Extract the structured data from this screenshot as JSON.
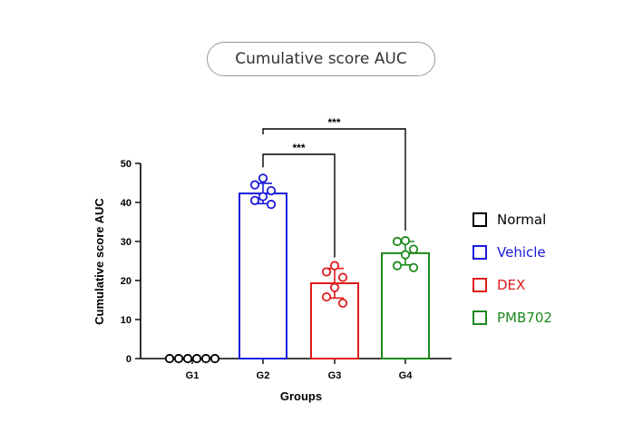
{
  "page_title": "Cumulative score AUC",
  "chart_data": {
    "type": "bar",
    "title": "Cumulative score AUC",
    "xlabel": "Groups",
    "ylabel": "Cumulative score AUC",
    "ylim": [
      0,
      50
    ],
    "yticks": [
      0,
      10,
      20,
      30,
      40,
      50
    ],
    "categories": [
      "G1",
      "G2",
      "G3",
      "G4"
    ],
    "values": [
      0,
      42.3,
      19.3,
      27.0
    ],
    "errors": [
      0,
      2.6,
      3.8,
      3.0
    ],
    "colors": [
      "#000000",
      "#1a1adc",
      "#e01b1b",
      "#1e8a1e"
    ],
    "points": [
      [
        0,
        0,
        0,
        0,
        0,
        0
      ],
      [
        46.2,
        44.5,
        43.0,
        41.5,
        40.5,
        39.5
      ],
      [
        23.8,
        22.2,
        20.8,
        18.2,
        15.8,
        14.2
      ],
      [
        30.2,
        30.0,
        28.0,
        26.6,
        23.8,
        23.3
      ]
    ],
    "significance": [
      {
        "from": "G2",
        "to": "G3",
        "label": "***"
      },
      {
        "from": "G2",
        "to": "G4",
        "label": "***"
      }
    ],
    "grid": false,
    "legend_position": "right"
  },
  "legend": [
    {
      "label": "Normal",
      "color": "#000000"
    },
    {
      "label": "Vehicle",
      "color": "#1a1adc"
    },
    {
      "label": "DEX",
      "color": "#e01b1b"
    },
    {
      "label": "PMB702",
      "color": "#1e8a1e"
    }
  ]
}
